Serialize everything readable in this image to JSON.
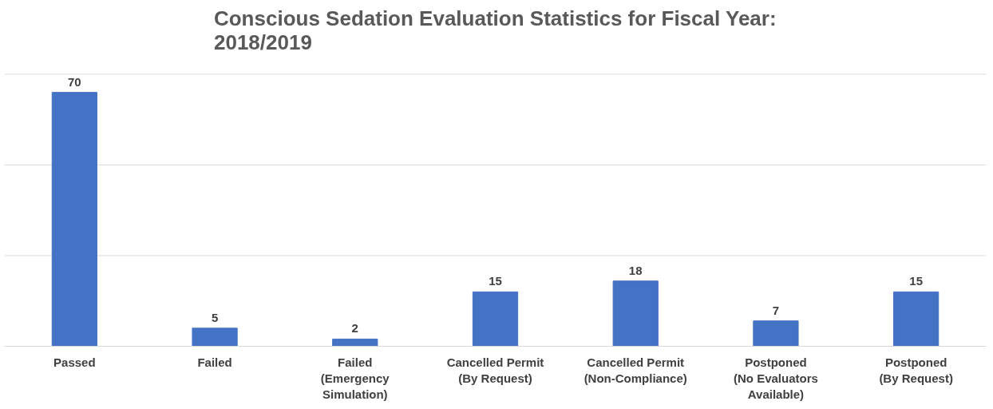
{
  "chart_data": {
    "type": "bar",
    "title": "Conscious Sedation Evaluation Statistics for Fiscal Year:\n2018/2019",
    "categories": [
      "Passed",
      "Failed",
      "Failed\n(Emergency\nSimulation)",
      "Cancelled Permit\n(By Request)",
      "Cancelled Permit\n(Non-Compliance)",
      "Postponed\n(No Evaluators\nAvailable)",
      "Postponed\n(By Request)"
    ],
    "values": [
      70,
      5,
      2,
      15,
      18,
      7,
      15
    ],
    "color": "#4472c4",
    "data_labels": true,
    "tick_labels": "x",
    "ref_lines": [
      {
        "axis": "y",
        "value": 25,
        "color": "#d9d9d9"
      },
      {
        "axis": "y",
        "value": 50,
        "color": "#d9d9d9"
      },
      {
        "axis": "y",
        "value": 75,
        "color": "#d9d9d9"
      }
    ]
  }
}
